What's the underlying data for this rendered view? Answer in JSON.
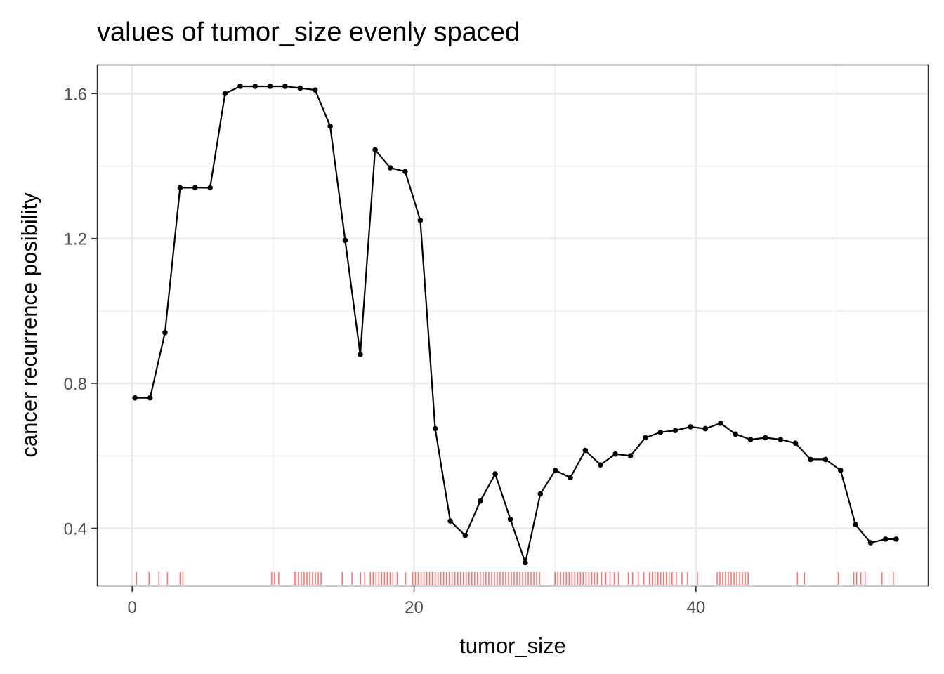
{
  "chart_data": {
    "type": "line",
    "title": "values of tumor_size evenly spaced",
    "xlabel": "tumor_size",
    "ylabel": "cancer recurrence posibility",
    "xlim": [
      -2.5,
      56.5
    ],
    "ylim": [
      0.24,
      1.68
    ],
    "x_ticks": [
      0,
      20,
      40
    ],
    "x_tick_labels": [
      "0",
      "20",
      "40"
    ],
    "y_ticks": [
      0.4,
      0.8,
      1.2,
      1.6
    ],
    "y_tick_labels": [
      "0.4",
      "0.8",
      "1.2",
      "1.6"
    ],
    "grid": true,
    "theme": "bw",
    "colors": {
      "line": "#000000",
      "rug": "#ff0000",
      "grid": "#ebebeb",
      "border": "#333333"
    },
    "series": [
      {
        "x": [
          0.2,
          1.27,
          2.33,
          3.4,
          4.46,
          5.53,
          6.59,
          7.66,
          8.72,
          9.79,
          10.85,
          11.92,
          12.98,
          14.05,
          15.11,
          16.18,
          17.24,
          18.31,
          19.37,
          20.44,
          21.5,
          22.57,
          23.63,
          24.7,
          25.76,
          26.83,
          27.89,
          28.96,
          30.02,
          31.09,
          32.15,
          33.22,
          34.28,
          35.35,
          36.41,
          37.48,
          38.54,
          39.61,
          40.67,
          41.74,
          42.8,
          43.87,
          44.93,
          46.0,
          47.06,
          48.13,
          49.19,
          50.26,
          51.32,
          52.39,
          53.45,
          54.2
        ],
        "y": [
          0.76,
          0.76,
          0.94,
          1.34,
          1.34,
          1.34,
          1.6,
          1.62,
          1.62,
          1.62,
          1.62,
          1.615,
          1.61,
          1.51,
          1.195,
          0.88,
          1.445,
          1.395,
          1.385,
          1.25,
          0.675,
          0.42,
          0.38,
          0.475,
          0.55,
          0.425,
          0.305,
          0.495,
          0.56,
          0.54,
          0.615,
          0.575,
          0.605,
          0.6,
          0.65,
          0.665,
          0.67,
          0.68,
          0.675,
          0.69,
          0.66,
          0.645,
          0.65,
          0.645,
          0.635,
          0.59,
          0.59,
          0.56,
          0.41,
          0.36,
          0.37,
          0.37
        ]
      }
    ],
    "rug_x": [
      0.3,
      1.2,
      1.9,
      2.5,
      3.4,
      3.6,
      9.9,
      10.1,
      10.4,
      11.5,
      11.6,
      11.8,
      12.0,
      12.2,
      12.4,
      12.6,
      12.8,
      13.0,
      13.2,
      13.4,
      14.9,
      15.6,
      16.2,
      16.5,
      16.9,
      17.1,
      17.3,
      17.5,
      17.7,
      17.9,
      18.1,
      18.3,
      18.5,
      18.8,
      19.4,
      19.9,
      20.1,
      20.3,
      20.5,
      20.7,
      20.9,
      21.1,
      21.3,
      21.5,
      21.7,
      21.9,
      22.1,
      22.3,
      22.5,
      22.7,
      22.9,
      23.1,
      23.3,
      23.5,
      23.7,
      23.9,
      24.1,
      24.3,
      24.5,
      24.7,
      24.9,
      25.1,
      25.3,
      25.5,
      25.7,
      25.9,
      26.1,
      26.3,
      26.5,
      26.7,
      26.9,
      27.1,
      27.3,
      27.5,
      27.7,
      27.9,
      28.1,
      28.3,
      28.5,
      28.7,
      28.9,
      30.0,
      30.2,
      30.4,
      30.6,
      30.8,
      31.0,
      31.2,
      31.4,
      31.6,
      31.8,
      32.0,
      32.2,
      32.4,
      32.6,
      32.8,
      33.0,
      33.3,
      33.6,
      33.9,
      34.2,
      34.5,
      35.2,
      35.5,
      35.9,
      36.3,
      36.7,
      36.9,
      37.1,
      37.3,
      37.5,
      37.7,
      37.9,
      38.1,
      38.3,
      38.6,
      39.0,
      39.4,
      40.1,
      41.5,
      41.7,
      41.9,
      42.1,
      42.3,
      42.5,
      42.7,
      42.9,
      43.1,
      43.3,
      43.5,
      43.7,
      47.2,
      47.7,
      50.1,
      51.2,
      51.4,
      51.7,
      52.0,
      53.2,
      54.0
    ]
  }
}
